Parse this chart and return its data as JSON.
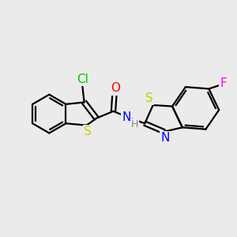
{
  "background_color": "#ebebeb",
  "bond_color": "#000000",
  "atom_colors": {
    "Cl": "#00cc00",
    "O": "#ff0000",
    "N": "#0000ff",
    "H": "#888888",
    "S_yellow": "#cccc00",
    "F": "#ff00ff"
  },
  "bond_width": 1.6,
  "font_size_atoms": 11,
  "figsize": [
    3.0,
    3.0
  ],
  "dpi": 100,
  "xlim": [
    0,
    10
  ],
  "ylim": [
    0,
    10
  ]
}
